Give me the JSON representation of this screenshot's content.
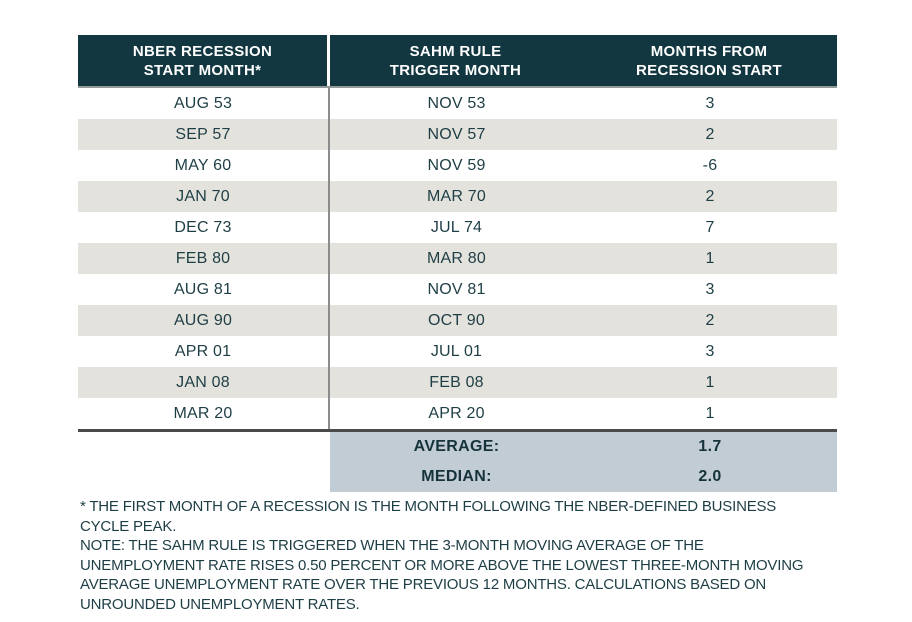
{
  "table": {
    "headers": [
      "NBER RECESSION\nSTART MONTH*",
      "SAHM RULE\nTRIGGER MONTH",
      "MONTHS FROM\nRECESSION START"
    ],
    "rows": [
      {
        "start": "AUG 53",
        "trigger": "NOV 53",
        "months": "3"
      },
      {
        "start": "SEP 57",
        "trigger": "NOV 57",
        "months": "2"
      },
      {
        "start": "MAY 60",
        "trigger": "NOV 59",
        "months": "-6"
      },
      {
        "start": "JAN 70",
        "trigger": "MAR 70",
        "months": "2"
      },
      {
        "start": "DEC 73",
        "trigger": "JUL 74",
        "months": "7"
      },
      {
        "start": "FEB 80",
        "trigger": "MAR 80",
        "months": "1"
      },
      {
        "start": "AUG 81",
        "trigger": "NOV 81",
        "months": "3"
      },
      {
        "start": "AUG 90",
        "trigger": "OCT 90",
        "months": "2"
      },
      {
        "start": "APR 01",
        "trigger": "JUL 01",
        "months": "3"
      },
      {
        "start": "JAN 08",
        "trigger": "FEB 08",
        "months": "1"
      },
      {
        "start": "MAR 20",
        "trigger": "APR 20",
        "months": "1"
      }
    ],
    "summary": [
      {
        "label": "AVERAGE:",
        "value": "1.7"
      },
      {
        "label": "MEDIAN:",
        "value": "2.0"
      }
    ]
  },
  "footnote": {
    "asterisk": "* THE FIRST MONTH OF A RECESSION IS THE MONTH FOLLOWING THE NBER-DEFINED BUSINESS\nCYCLE PEAK.",
    "note": "NOTE: THE SAHM RULE IS TRIGGERED WHEN THE 3-MONTH MOVING AVERAGE OF THE\nUNEMPLOYMENT RATE RISES 0.50 PERCENT OR MORE ABOVE THE LOWEST THREE-MONTH MOVING\nAVERAGE UNEMPLOYMENT RATE OVER THE PREVIOUS 12 MONTHS. CALCULATIONS BASED ON\nUNROUNDED UNEMPLOYMENT RATES."
  },
  "colors": {
    "header_bg": "#123740",
    "header_text": "#ffffff",
    "row_alt_bg": "#e3e2dc",
    "body_text": "#1e3e45",
    "summary_bg": "#c1ccd4",
    "summary_top_line": "#4a4a4a",
    "column_divider": "#8c8c8c"
  },
  "chart_data": {
    "type": "table",
    "title": "",
    "columns": [
      "NBER RECESSION START MONTH*",
      "SAHM RULE TRIGGER MONTH",
      "MONTHS FROM RECESSION START"
    ],
    "rows": [
      [
        "AUG 53",
        "NOV 53",
        3
      ],
      [
        "SEP 57",
        "NOV 57",
        2
      ],
      [
        "MAY 60",
        "NOV 59",
        -6
      ],
      [
        "JAN 70",
        "MAR 70",
        2
      ],
      [
        "DEC 73",
        "JUL 74",
        7
      ],
      [
        "FEB 80",
        "MAR 80",
        1
      ],
      [
        "AUG 81",
        "NOV 81",
        3
      ],
      [
        "AUG 90",
        "OCT 90",
        2
      ],
      [
        "APR 01",
        "JUL 01",
        3
      ],
      [
        "JAN 08",
        "FEB 08",
        1
      ],
      [
        "MAR 20",
        "APR 20",
        1
      ]
    ],
    "summary": {
      "average": 1.7,
      "median": 2.0
    }
  }
}
